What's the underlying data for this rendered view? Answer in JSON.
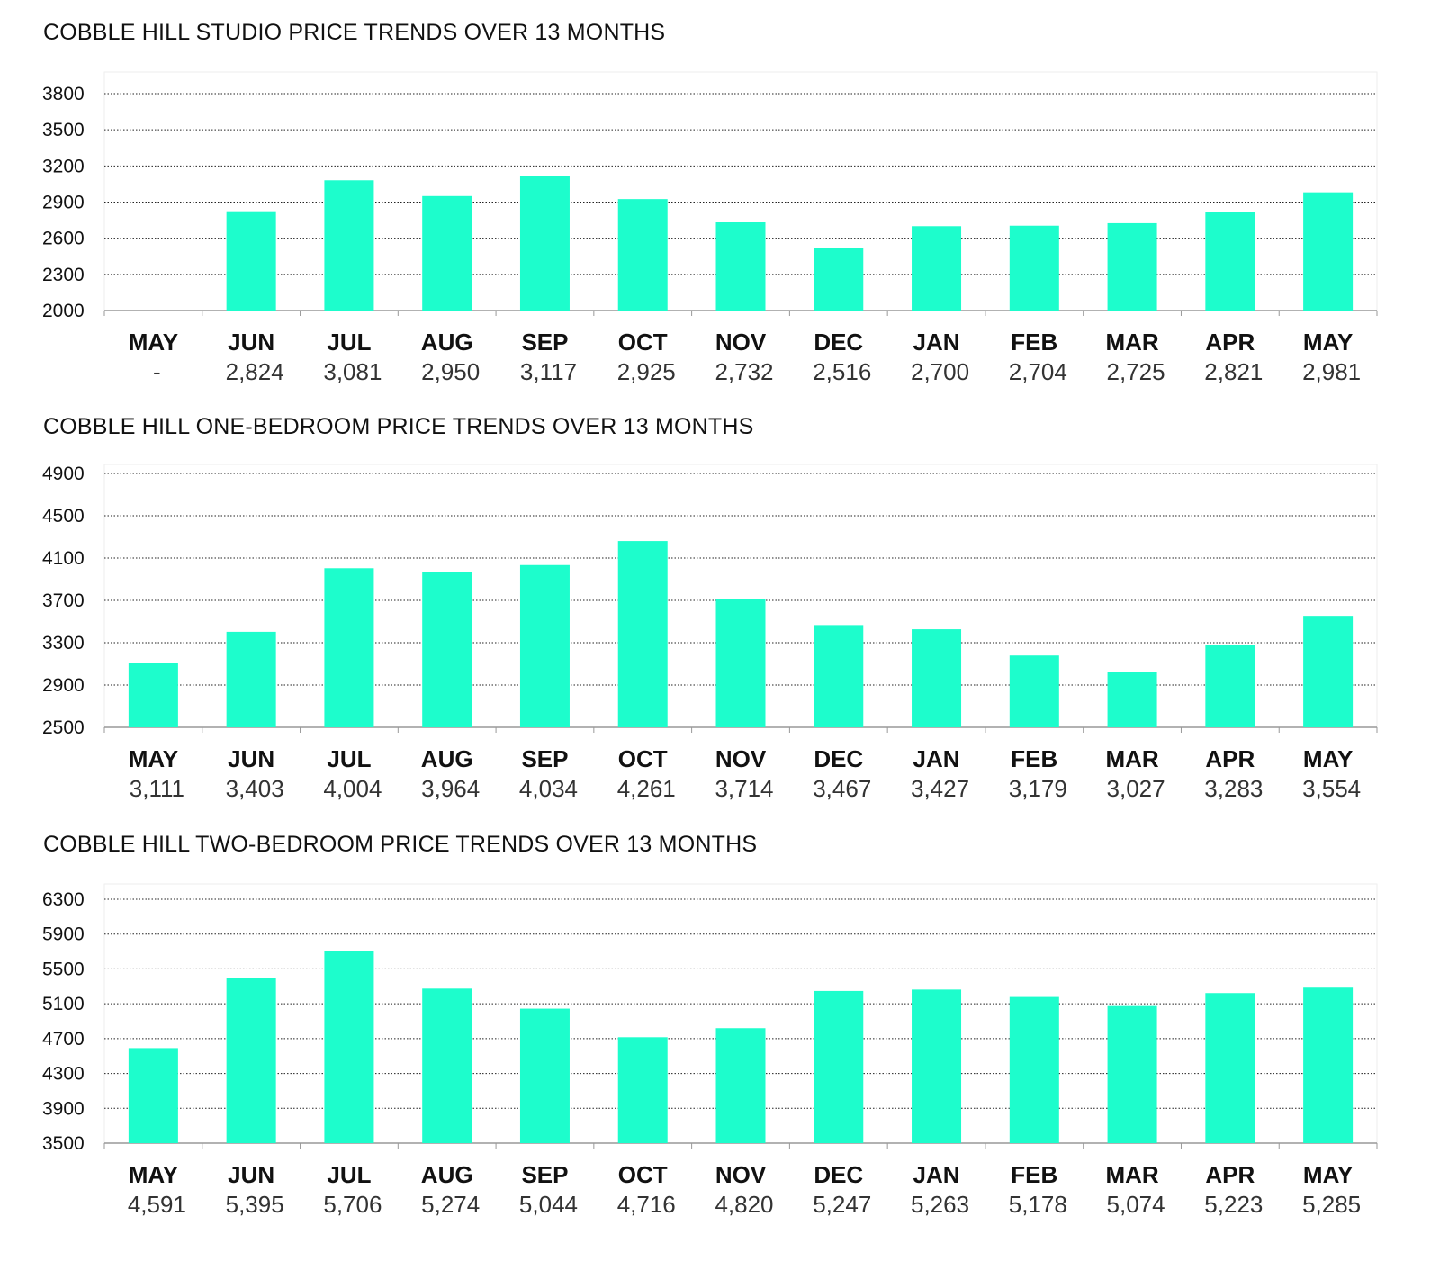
{
  "colors": {
    "bar": "#1dfdcc",
    "grid": "#222222",
    "axis": "#999999"
  },
  "chart_data": [
    {
      "type": "bar",
      "title": "COBBLE HILL STUDIO PRICE TRENDS OVER 13 MONTHS",
      "categories": [
        "MAY",
        "JUN",
        "JUL",
        "AUG",
        "SEP",
        "OCT",
        "NOV",
        "DEC",
        "JAN",
        "FEB",
        "MAR",
        "APR",
        "MAY"
      ],
      "values": [
        null,
        2824,
        3081,
        2950,
        3117,
        2925,
        2732,
        2516,
        2700,
        2704,
        2725,
        2821,
        2981
      ],
      "value_labels": [
        "-",
        "2,824",
        "3,081",
        "2,950",
        "3,117",
        "2,925",
        "2,732",
        "2,516",
        "2,700",
        "2,704",
        "2,725",
        "2,821",
        "2,981"
      ],
      "yticks": [
        "3800",
        "3500",
        "3200",
        "2900",
        "2600",
        "2300",
        "2000"
      ],
      "ylim": [
        2000,
        3800
      ],
      "grid": true
    },
    {
      "type": "bar",
      "title": "COBBLE HILL ONE-BEDROOM PRICE TRENDS OVER 13 MONTHS",
      "categories": [
        "MAY",
        "JUN",
        "JUL",
        "AUG",
        "SEP",
        "OCT",
        "NOV",
        "DEC",
        "JAN",
        "FEB",
        "MAR",
        "APR",
        "MAY"
      ],
      "values": [
        3111,
        3403,
        4004,
        3964,
        4034,
        4261,
        3714,
        3467,
        3427,
        3179,
        3027,
        3283,
        3554
      ],
      "value_labels": [
        "3,111",
        "3,403",
        "4,004",
        "3,964",
        "4,034",
        "4,261",
        "3,714",
        "3,467",
        "3,427",
        "3,179",
        "3,027",
        "3,283",
        "3,554"
      ],
      "yticks": [
        "4900",
        "4500",
        "4100",
        "3700",
        "3300",
        "2900",
        "2500"
      ],
      "ylim": [
        2500,
        4900
      ],
      "grid": true
    },
    {
      "type": "bar",
      "title": "COBBLE HILL TWO-BEDROOM PRICE TRENDS OVER 13 MONTHS",
      "categories": [
        "MAY",
        "JUN",
        "JUL",
        "AUG",
        "SEP",
        "OCT",
        "NOV",
        "DEC",
        "JAN",
        "FEB",
        "MAR",
        "APR",
        "MAY"
      ],
      "values": [
        4591,
        5395,
        5706,
        5274,
        5044,
        4716,
        4820,
        5247,
        5263,
        5178,
        5074,
        5223,
        5285
      ],
      "value_labels": [
        "4,591",
        "5,395",
        "5,706",
        "5,274",
        "5,044",
        "4,716",
        "4,820",
        "5,247",
        "5,263",
        "5,178",
        "5,074",
        "5,223",
        "5,285"
      ],
      "yticks": [
        "6300",
        "5900",
        "5500",
        "5100",
        "4700",
        "4300",
        "3900",
        "3500"
      ],
      "ylim": [
        3500,
        6300
      ],
      "grid": true
    }
  ]
}
